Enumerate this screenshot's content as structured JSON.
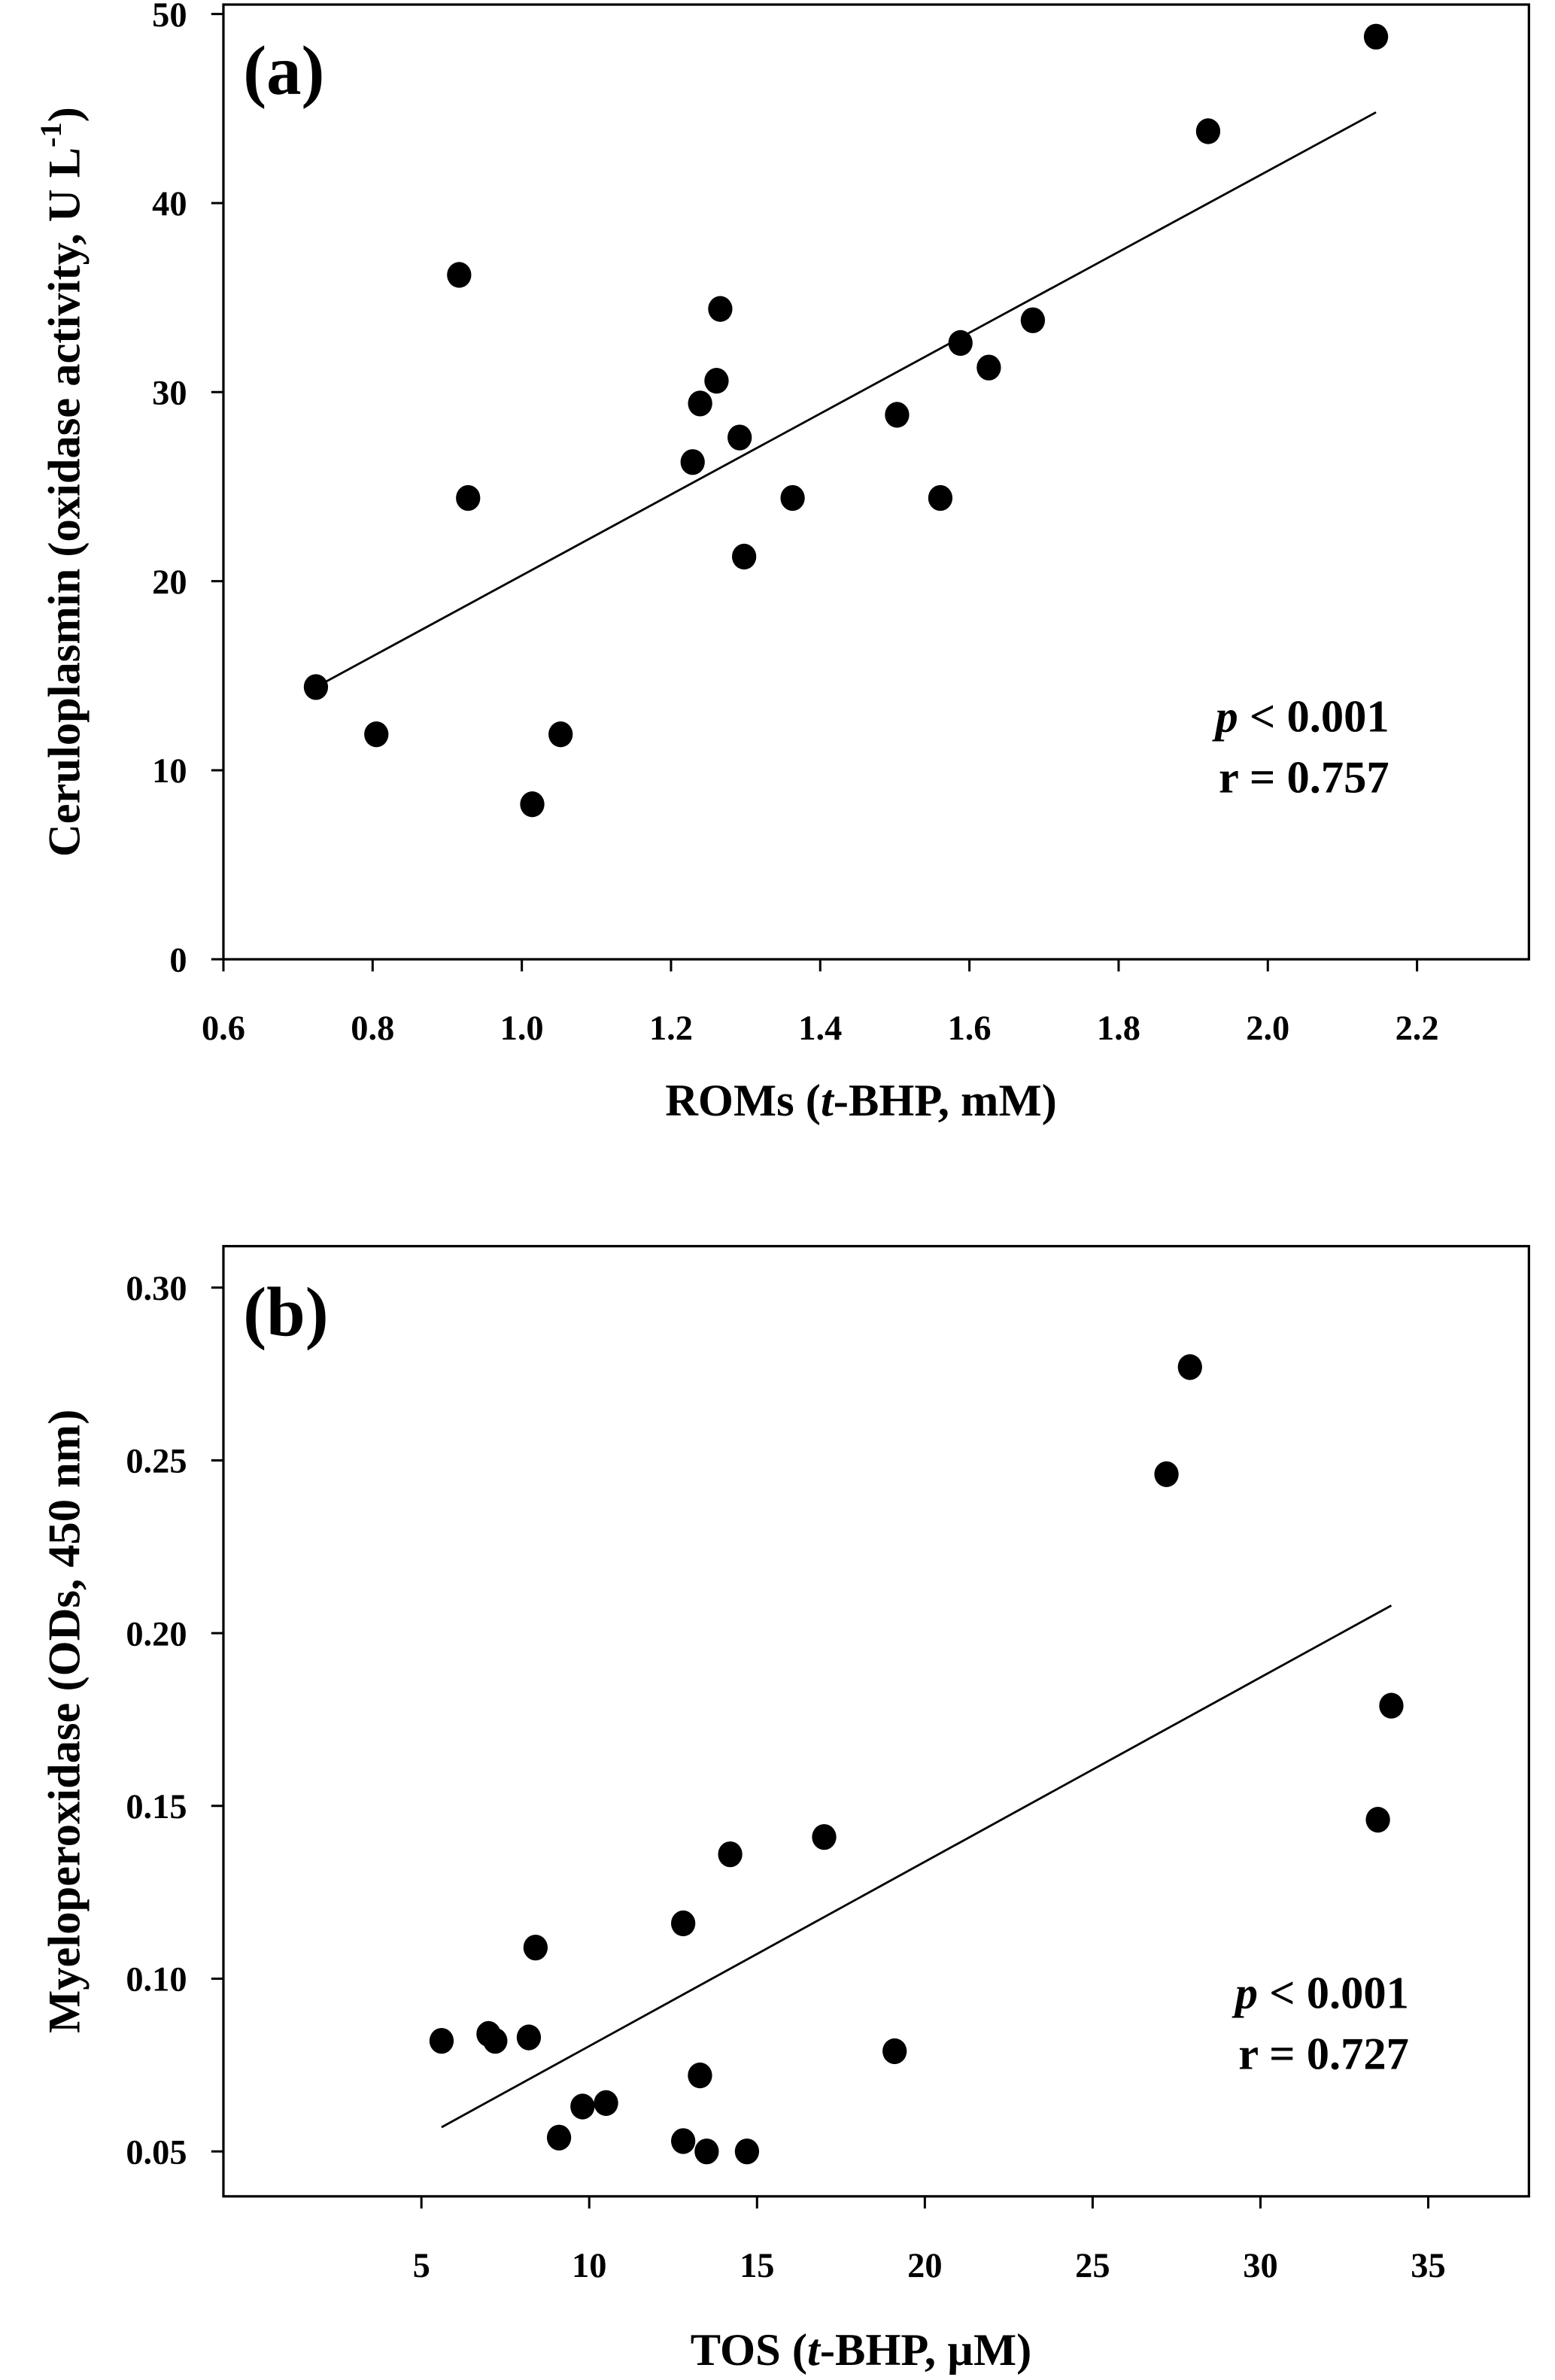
{
  "chart_data": [
    {
      "type": "scatter",
      "panel_label": "(a)",
      "xlabel_parts": [
        "ROMs (",
        "t",
        "-BHP, mM)"
      ],
      "ylabel": "Ceruloplasmin (oxidase activity, U L",
      "ylabel_sup": "-1",
      "ylabel_close": ")",
      "xlim": [
        0.6,
        2.35
      ],
      "ylim": [
        0,
        50.5
      ],
      "xticks": [
        0.6,
        0.8,
        1.0,
        1.2,
        1.4,
        1.6,
        1.8,
        2.0,
        2.2
      ],
      "xtick_labels": [
        "0.6",
        "0.8",
        "1.0",
        "1.2",
        "1.4",
        "1.6",
        "1.8",
        "2.0",
        "2.2"
      ],
      "yticks": [
        0,
        10,
        20,
        30,
        40,
        50
      ],
      "ytick_labels": [
        "0",
        "10",
        "20",
        "30",
        "40",
        "50"
      ],
      "points": [
        [
          0.724,
          14.4
        ],
        [
          0.805,
          11.9
        ],
        [
          0.916,
          36.2
        ],
        [
          0.928,
          24.4
        ],
        [
          1.014,
          8.2
        ],
        [
          1.052,
          11.9
        ],
        [
          1.229,
          26.3
        ],
        [
          1.239,
          29.4
        ],
        [
          1.261,
          30.6
        ],
        [
          1.266,
          34.4
        ],
        [
          1.292,
          27.6
        ],
        [
          1.298,
          21.3
        ],
        [
          1.363,
          24.4
        ],
        [
          1.503,
          28.8
        ],
        [
          1.561,
          24.4
        ],
        [
          1.588,
          32.6
        ],
        [
          1.626,
          31.3
        ],
        [
          1.685,
          33.8
        ],
        [
          1.92,
          43.8
        ],
        [
          2.145,
          48.8
        ]
      ],
      "fit_line": [
        [
          0.724,
          14.4
        ],
        [
          2.145,
          44.8
        ]
      ],
      "stats": {
        "p_symbol": "p",
        "p_text": " < 0.001",
        "r_text": "r = 0.757"
      }
    },
    {
      "type": "scatter",
      "panel_label": "(b)",
      "xlabel_parts": [
        "TOS (",
        "t",
        "-BHP, µM)"
      ],
      "ylabel": "Myeloperoxidase (ODs, 450 nm)",
      "xlim": [
        -0.9,
        38
      ],
      "ylim": [
        0.037,
        0.312
      ],
      "xticks": [
        5,
        10,
        15,
        20,
        25,
        30,
        35
      ],
      "xtick_labels": [
        "5",
        "10",
        "15",
        "20",
        "25",
        "30",
        "35"
      ],
      "yticks": [
        0.05,
        0.1,
        0.15,
        0.2,
        0.25,
        0.3
      ],
      "ytick_labels": [
        "0.05",
        "0.10",
        "0.15",
        "0.20",
        "0.25",
        "0.30"
      ],
      "points": [
        [
          5.6,
          0.082
        ],
        [
          7.0,
          0.084
        ],
        [
          7.2,
          0.082
        ],
        [
          8.2,
          0.083
        ],
        [
          8.4,
          0.109
        ],
        [
          9.1,
          0.054
        ],
        [
          9.8,
          0.063
        ],
        [
          10.5,
          0.064
        ],
        [
          12.8,
          0.116
        ],
        [
          12.8,
          0.053
        ],
        [
          13.3,
          0.072
        ],
        [
          13.5,
          0.05
        ],
        [
          14.2,
          0.136
        ],
        [
          14.7,
          0.05
        ],
        [
          17.0,
          0.141
        ],
        [
          19.1,
          0.079
        ],
        [
          27.2,
          0.246
        ],
        [
          27.9,
          0.277
        ],
        [
          33.5,
          0.146
        ],
        [
          33.9,
          0.179
        ]
      ],
      "fit_line": [
        [
          5.6,
          0.057
        ],
        [
          33.9,
          0.208
        ]
      ],
      "stats": {
        "p_symbol": "p",
        "p_text": " < 0.001",
        "r_text": "r = 0.727"
      }
    }
  ]
}
